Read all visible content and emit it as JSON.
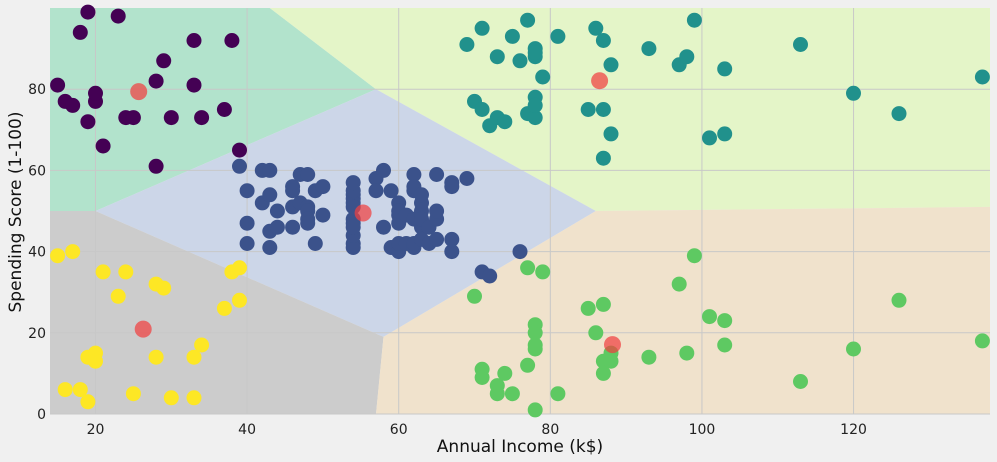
{
  "chart_data": {
    "type": "scatter",
    "title": "",
    "xlabel": "Annual Income (k$)",
    "ylabel": "Spending Score (1-100)",
    "xlim": [
      14,
      138
    ],
    "ylim": [
      0,
      100
    ],
    "x_ticks": [
      20,
      40,
      60,
      80,
      100,
      120
    ],
    "y_ticks": [
      0,
      20,
      40,
      60,
      80
    ],
    "grid": true,
    "regions": [
      {
        "cluster": "low-income-high-spending",
        "color": "#b2e3cc",
        "points": [
          [
            14,
            100
          ],
          [
            14,
            50
          ],
          [
            20,
            50
          ],
          [
            57,
            80
          ],
          [
            43,
            100
          ]
        ]
      },
      {
        "cluster": "high-income-high-spending",
        "color": "#e4f5c8",
        "points": [
          [
            43,
            100
          ],
          [
            57,
            80
          ],
          [
            86,
            50
          ],
          [
            138,
            51
          ],
          [
            138,
            100
          ]
        ]
      },
      {
        "cluster": "average",
        "color": "#ccd6e8",
        "points": [
          [
            20,
            50
          ],
          [
            57,
            80
          ],
          [
            86,
            50
          ],
          [
            58,
            19
          ]
        ]
      },
      {
        "cluster": "low-income-low-spending",
        "color": "#cccccc",
        "points": [
          [
            14,
            50
          ],
          [
            20,
            50
          ],
          [
            58,
            19
          ],
          [
            57,
            0
          ],
          [
            14,
            0
          ]
        ]
      },
      {
        "cluster": "high-income-low-spending",
        "color": "#f0e2cc",
        "points": [
          [
            58,
            19
          ],
          [
            86,
            50
          ],
          [
            138,
            51
          ],
          [
            138,
            0
          ],
          [
            57,
            0
          ]
        ]
      }
    ],
    "series": [
      {
        "cluster": "low-income-high-spending",
        "color": "#440154",
        "points": [
          [
            15,
            81
          ],
          [
            16,
            77
          ],
          [
            17,
            76
          ],
          [
            18,
            94
          ],
          [
            19,
            72
          ],
          [
            19,
            99
          ],
          [
            20,
            77
          ],
          [
            20,
            79
          ],
          [
            21,
            66
          ],
          [
            23,
            98
          ],
          [
            24,
            73
          ],
          [
            25,
            73
          ],
          [
            28,
            82
          ],
          [
            28,
            61
          ],
          [
            29,
            87
          ],
          [
            30,
            73
          ],
          [
            33,
            81
          ],
          [
            33,
            92
          ],
          [
            34,
            73
          ],
          [
            37,
            75
          ],
          [
            38,
            92
          ],
          [
            39,
            65
          ]
        ]
      },
      {
        "cluster": "high-income-high-spending",
        "color": "#21918c",
        "points": [
          [
            69,
            91
          ],
          [
            70,
            77
          ],
          [
            71,
            95
          ],
          [
            71,
            75
          ],
          [
            72,
            71
          ],
          [
            73,
            88
          ],
          [
            73,
            73
          ],
          [
            74,
            72
          ],
          [
            75,
            93
          ],
          [
            76,
            87
          ],
          [
            77,
            74
          ],
          [
            77,
            97
          ],
          [
            78,
            90
          ],
          [
            78,
            88
          ],
          [
            78,
            89
          ],
          [
            78,
            73
          ],
          [
            78,
            78
          ],
          [
            78,
            76
          ],
          [
            79,
            83
          ],
          [
            81,
            93
          ],
          [
            85,
            75
          ],
          [
            86,
            95
          ],
          [
            87,
            92
          ],
          [
            87,
            63
          ],
          [
            87,
            75
          ],
          [
            88,
            86
          ],
          [
            88,
            69
          ],
          [
            93,
            90
          ],
          [
            97,
            86
          ],
          [
            98,
            88
          ],
          [
            99,
            97
          ],
          [
            101,
            68
          ],
          [
            103,
            85
          ],
          [
            103,
            69
          ],
          [
            113,
            91
          ],
          [
            120,
            79
          ],
          [
            126,
            74
          ],
          [
            137,
            83
          ]
        ]
      },
      {
        "cluster": "average",
        "color": "#3b528b",
        "points": [
          [
            39,
            61
          ],
          [
            40,
            55
          ],
          [
            40,
            47
          ],
          [
            40,
            42
          ],
          [
            42,
            52
          ],
          [
            42,
            60
          ],
          [
            43,
            54
          ],
          [
            43,
            60
          ],
          [
            43,
            45
          ],
          [
            43,
            41
          ],
          [
            44,
            50
          ],
          [
            44,
            46
          ],
          [
            46,
            51
          ],
          [
            46,
            46
          ],
          [
            46,
            56
          ],
          [
            46,
            55
          ],
          [
            47,
            52
          ],
          [
            47,
            59
          ],
          [
            48,
            51
          ],
          [
            48,
            59
          ],
          [
            48,
            50
          ],
          [
            48,
            48
          ],
          [
            48,
            47
          ],
          [
            49,
            55
          ],
          [
            49,
            42
          ],
          [
            50,
            49
          ],
          [
            50,
            56
          ],
          [
            54,
            47
          ],
          [
            54,
            54
          ],
          [
            54,
            53
          ],
          [
            54,
            48
          ],
          [
            54,
            52
          ],
          [
            54,
            42
          ],
          [
            54,
            51
          ],
          [
            54,
            55
          ],
          [
            54,
            41
          ],
          [
            54,
            44
          ],
          [
            54,
            57
          ],
          [
            54,
            46
          ],
          [
            57,
            58
          ],
          [
            57,
            55
          ],
          [
            58,
            60
          ],
          [
            58,
            46
          ],
          [
            59,
            55
          ],
          [
            59,
            41
          ],
          [
            60,
            49
          ],
          [
            60,
            40
          ],
          [
            60,
            42
          ],
          [
            60,
            52
          ],
          [
            60,
            47
          ],
          [
            60,
            50
          ],
          [
            61,
            42
          ],
          [
            61,
            49
          ],
          [
            62,
            41
          ],
          [
            62,
            48
          ],
          [
            62,
            59
          ],
          [
            62,
            55
          ],
          [
            62,
            56
          ],
          [
            62,
            42
          ],
          [
            63,
            50
          ],
          [
            63,
            46
          ],
          [
            63,
            43
          ],
          [
            63,
            48
          ],
          [
            63,
            52
          ],
          [
            63,
            54
          ],
          [
            64,
            42
          ],
          [
            64,
            46
          ],
          [
            65,
            48
          ],
          [
            65,
            50
          ],
          [
            65,
            43
          ],
          [
            65,
            59
          ],
          [
            67,
            43
          ],
          [
            67,
            57
          ],
          [
            67,
            56
          ],
          [
            67,
            40
          ],
          [
            69,
            58
          ],
          [
            71,
            35
          ],
          [
            72,
            34
          ],
          [
            76,
            40
          ]
        ]
      },
      {
        "cluster": "low-income-low-spending",
        "color": "#fde725",
        "points": [
          [
            15,
            39
          ],
          [
            16,
            6
          ],
          [
            17,
            40
          ],
          [
            18,
            6
          ],
          [
            19,
            3
          ],
          [
            19,
            14
          ],
          [
            20,
            15
          ],
          [
            20,
            13
          ],
          [
            21,
            35
          ],
          [
            23,
            29
          ],
          [
            24,
            35
          ],
          [
            25,
            5
          ],
          [
            28,
            14
          ],
          [
            28,
            32
          ],
          [
            29,
            31
          ],
          [
            30,
            4
          ],
          [
            33,
            4
          ],
          [
            33,
            14
          ],
          [
            34,
            17
          ],
          [
            37,
            26
          ],
          [
            38,
            35
          ],
          [
            39,
            36
          ],
          [
            39,
            28
          ]
        ]
      },
      {
        "cluster": "high-income-low-spending",
        "color": "#5ec962",
        "points": [
          [
            70,
            29
          ],
          [
            71,
            11
          ],
          [
            71,
            9
          ],
          [
            73,
            5
          ],
          [
            73,
            7
          ],
          [
            74,
            10
          ],
          [
            75,
            5
          ],
          [
            77,
            12
          ],
          [
            77,
            36
          ],
          [
            78,
            22
          ],
          [
            78,
            17
          ],
          [
            78,
            20
          ],
          [
            78,
            16
          ],
          [
            78,
            1
          ],
          [
            79,
            35
          ],
          [
            81,
            5
          ],
          [
            85,
            26
          ],
          [
            86,
            20
          ],
          [
            87,
            27
          ],
          [
            87,
            13
          ],
          [
            87,
            10
          ],
          [
            88,
            13
          ],
          [
            88,
            15
          ],
          [
            93,
            14
          ],
          [
            97,
            32
          ],
          [
            98,
            15
          ],
          [
            99,
            39
          ],
          [
            101,
            24
          ],
          [
            103,
            17
          ],
          [
            103,
            23
          ],
          [
            113,
            8
          ],
          [
            120,
            16
          ],
          [
            126,
            28
          ],
          [
            137,
            18
          ]
        ]
      }
    ],
    "centroids": {
      "color": "#f04040",
      "points": [
        [
          25.7,
          79.4
        ],
        [
          86.5,
          82.1
        ],
        [
          55.3,
          49.5
        ],
        [
          26.3,
          20.9
        ],
        [
          88.2,
          17.1
        ]
      ]
    }
  }
}
